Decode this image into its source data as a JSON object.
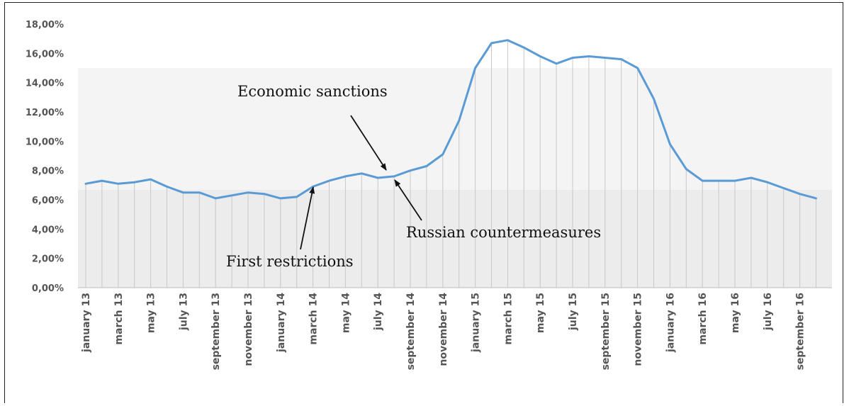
{
  "chart_data": {
    "type": "line",
    "title": "",
    "xlabel": "",
    "ylabel": "",
    "ylim": [
      0,
      18
    ],
    "y_ticks": [
      "0,00%",
      "2,00%",
      "4,00%",
      "6,00%",
      "8,00%",
      "10,00%",
      "12,00%",
      "14,00%",
      "16,00%",
      "18,00%"
    ],
    "x_tick_labels": [
      "january 13",
      "march 13",
      "may 13",
      "july 13",
      "september 13",
      "november 13",
      "january 14",
      "march 14",
      "may 14",
      "july 14",
      "september 14",
      "november 14",
      "january 15",
      "march 15",
      "may 15",
      "july 15",
      "september 15",
      "november 15",
      "january 16",
      "march 16",
      "may 16",
      "july 16",
      "september 16"
    ],
    "grid": "vertical lines at each month",
    "series": [
      {
        "color": "#5b9bd5",
        "x": [
          "2013-01",
          "2013-02",
          "2013-03",
          "2013-04",
          "2013-05",
          "2013-06",
          "2013-07",
          "2013-08",
          "2013-09",
          "2013-10",
          "2013-11",
          "2013-12",
          "2014-01",
          "2014-02",
          "2014-03",
          "2014-04",
          "2014-05",
          "2014-06",
          "2014-07",
          "2014-08",
          "2014-09",
          "2014-10",
          "2014-11",
          "2014-12",
          "2015-01",
          "2015-02",
          "2015-03",
          "2015-04",
          "2015-05",
          "2015-06",
          "2015-07",
          "2015-08",
          "2015-09",
          "2015-10",
          "2015-11",
          "2015-12",
          "2016-01",
          "2016-02",
          "2016-03",
          "2016-04",
          "2016-05",
          "2016-06",
          "2016-07",
          "2016-08",
          "2016-09",
          "2016-10"
        ],
        "values": [
          7.1,
          7.3,
          7.1,
          7.2,
          7.4,
          6.9,
          6.5,
          6.5,
          6.1,
          6.3,
          6.5,
          6.4,
          6.1,
          6.2,
          6.9,
          7.3,
          7.6,
          7.8,
          7.5,
          7.6,
          8.0,
          8.3,
          9.1,
          11.4,
          15.0,
          16.7,
          16.9,
          16.4,
          15.8,
          15.3,
          15.7,
          15.8,
          15.7,
          15.6,
          15.0,
          12.9,
          9.8,
          8.1,
          7.3,
          7.3,
          7.3,
          7.5,
          7.2,
          6.8,
          6.4,
          6.1
        ]
      }
    ],
    "annotations": [
      {
        "text": "Economic sanctions",
        "target_x": "2014-07"
      },
      {
        "text": "Russian countermeasures",
        "target_x": "2014-08"
      },
      {
        "text": "First restrictions",
        "target_x": "2014-03"
      }
    ]
  }
}
